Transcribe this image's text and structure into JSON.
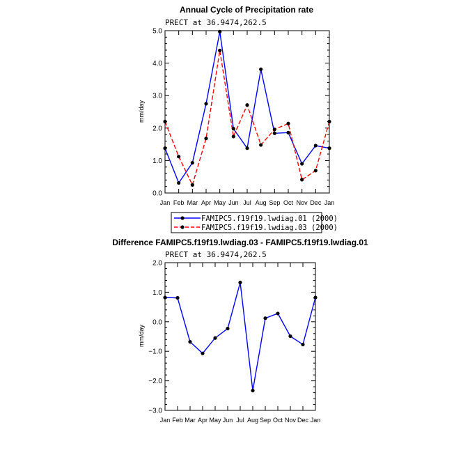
{
  "chart_data": [
    {
      "type": "line",
      "title": "Annual Cycle of Precipitation rate",
      "subtitle": "PRECT at 36.9474,262.5",
      "ylabel": "mm/day",
      "xlabel": "",
      "ylim": [
        0,
        5
      ],
      "yticks": [
        "0.0",
        "1.0",
        "2.0",
        "3.0",
        "4.0",
        "5.0"
      ],
      "categories": [
        "Jan",
        "Feb",
        "Mar",
        "Apr",
        "May",
        "Jun",
        "Jul",
        "Aug",
        "Sep",
        "Oct",
        "Nov",
        "Dec",
        "Jan"
      ],
      "grid": false,
      "legend_position": "bottom",
      "series": [
        {
          "name": "FAMIPC5.f19f19.lwdiag.01 (2000)",
          "color": "#0000ff",
          "dash": "solid",
          "values": [
            1.38,
            0.31,
            0.93,
            2.75,
            4.97,
            1.98,
            1.38,
            3.81,
            1.84,
            1.86,
            0.9,
            1.46,
            1.38
          ]
        },
        {
          "name": "FAMIPC5.f19f19.lwdiag.03 (2000)",
          "color": "#ff0000",
          "dash": "dashed",
          "values": [
            2.2,
            1.12,
            0.25,
            1.68,
            4.39,
            1.74,
            2.71,
            1.48,
            1.96,
            2.14,
            0.41,
            0.69,
            2.2
          ]
        }
      ]
    },
    {
      "type": "line",
      "title": "Difference FAMIPC5.f19f19.lwdiag.03 - FAMIPC5.f19f19.lwdiag.01",
      "subtitle": "PRECT at 36.9474,262.5",
      "ylabel": "mm/day",
      "xlabel": "",
      "ylim": [
        -3,
        2
      ],
      "yticks": [
        "−3.0",
        "−2.0",
        "−1.0",
        "0.0",
        "1.0",
        "2.0"
      ],
      "categories": [
        "Jan",
        "Feb",
        "Mar",
        "Apr",
        "May",
        "Jun",
        "Jul",
        "Aug",
        "Sep",
        "Oct",
        "Nov",
        "Dec",
        "Jan"
      ],
      "grid": false,
      "series": [
        {
          "color": "#0000ff",
          "dash": "solid",
          "values": [
            0.82,
            0.81,
            -0.68,
            -1.07,
            -0.55,
            -0.23,
            1.33,
            -2.33,
            0.12,
            0.28,
            -0.49,
            -0.77,
            0.82
          ]
        }
      ]
    }
  ]
}
